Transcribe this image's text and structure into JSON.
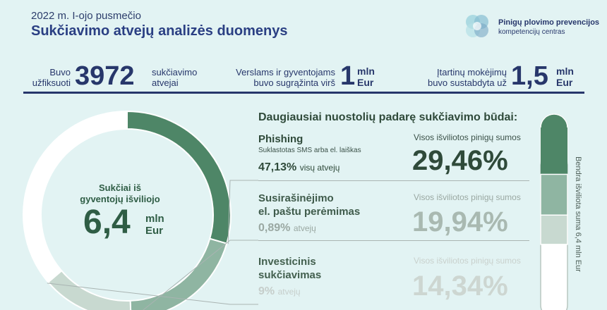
{
  "header": {
    "kicker": "2022 m. I-ojo pusmečio",
    "title": "Sukčiavimo atvejų analizės duomenys"
  },
  "logo": {
    "icon": "interlocking-circles-logo",
    "line1": "Pinigų plovimo prevencijos",
    "line2": "kompetencijų centras"
  },
  "stats": [
    {
      "pre_line1": "Buvo",
      "pre_line2": "užfiksuoti",
      "value": "3972",
      "post_line1": "sukčiavimo",
      "post_line2": "atvejai"
    },
    {
      "pre_line1": "Verslams ir gyventojams",
      "pre_line2": "buvo sugrąžinta virš",
      "value": "1",
      "unit_line1": "mln",
      "unit_line2": "Eur"
    },
    {
      "pre_line1": "Įtartinų mokėjimų",
      "pre_line2": "buvo sustabdyta už",
      "value": "1,5",
      "unit_line1": "mln",
      "unit_line2": "Eur"
    }
  ],
  "donut": {
    "label_line1": "Sukčiai iš",
    "label_line2": "gyventojų išviliojo",
    "value": "6,4",
    "unit_line1": "mln",
    "unit_line2": "Eur"
  },
  "section_title": "Daugiausiai nuostolių padarę sukčiavimo būdai:",
  "methods": [
    {
      "name_line1": "Phishing",
      "name_line2": "",
      "subtitle": "Suklastotas SMS arba el. laiškas",
      "share_pct": "47,13%",
      "share_suffix": "visų atvejų",
      "amount_label": "Visos išviliotos pinigų sumos",
      "amount_pct": "29,46%",
      "color": "#4e8667",
      "label_color": "#3b5148"
    },
    {
      "name_line1": "Susirašinėjimo",
      "name_line2": "el. paštu perėmimas",
      "subtitle": "",
      "share_pct": "0,89%",
      "share_suffix": "atvejų",
      "amount_label": "Visos išviliotos pinigų sumos",
      "amount_pct": "19,94%",
      "color": "#8fb5a2",
      "label_color": "#9aa8a2"
    },
    {
      "name_line1": "Investicinis",
      "name_line2": "sukčiavimas",
      "subtitle": "",
      "share_pct": "9%",
      "share_suffix": "atvejų",
      "amount_label": "Visos išviliotos pinigų sumos",
      "amount_pct": "14,34%",
      "color": "#c8d9d0",
      "label_color": "#c6cecb"
    }
  ],
  "side_label": "Bendra išviliota suma 6,4 mln Eur",
  "chart_data": {
    "type": "pie",
    "title": "Daugiausiai nuostolių padarę sukčiavimo būdai:",
    "total": "6,4 mln Eur",
    "categories": [
      "Phishing",
      "Susirašinėjimo el. paštu perėmimas",
      "Investicinis sukčiavimas"
    ],
    "series": [
      {
        "name": "Visos išviliotos pinigų sumos",
        "values": [
          29.46,
          19.94,
          14.34
        ]
      },
      {
        "name": "visų atvejų",
        "values": [
          47.13,
          0.89,
          9
        ]
      }
    ],
    "colors": [
      "#4e8667",
      "#8fb5a2",
      "#c8d9d0"
    ]
  }
}
